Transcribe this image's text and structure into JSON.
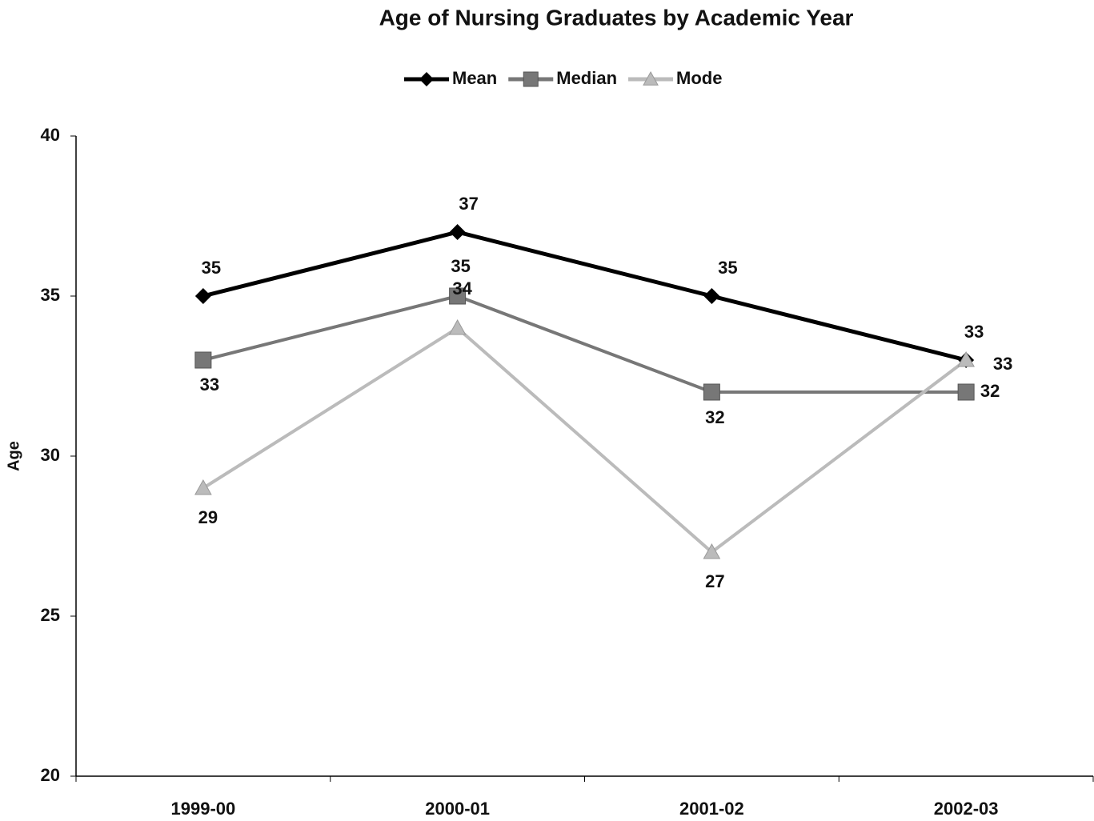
{
  "chart_data": {
    "type": "line",
    "title": "Age of Nursing Graduates by Academic Year",
    "y_label": "Age",
    "categories": [
      "1999-00",
      "2000-01",
      "2001-02",
      "2002-03"
    ],
    "series": [
      {
        "name": "Mean",
        "color": "#000000",
        "marker": "diamond",
        "values": [
          35,
          37,
          35,
          33
        ]
      },
      {
        "name": "Median",
        "color": "#777777",
        "marker": "square",
        "values": [
          33,
          35,
          32,
          32
        ]
      },
      {
        "name": "Mode",
        "color": "#bbbbbb",
        "marker": "triangle",
        "values": [
          29,
          34,
          27,
          33
        ]
      }
    ],
    "ylim": [
      20,
      40
    ],
    "yticks": [
      20,
      25,
      30,
      35,
      40
    ],
    "grid": false,
    "legend": "top"
  }
}
